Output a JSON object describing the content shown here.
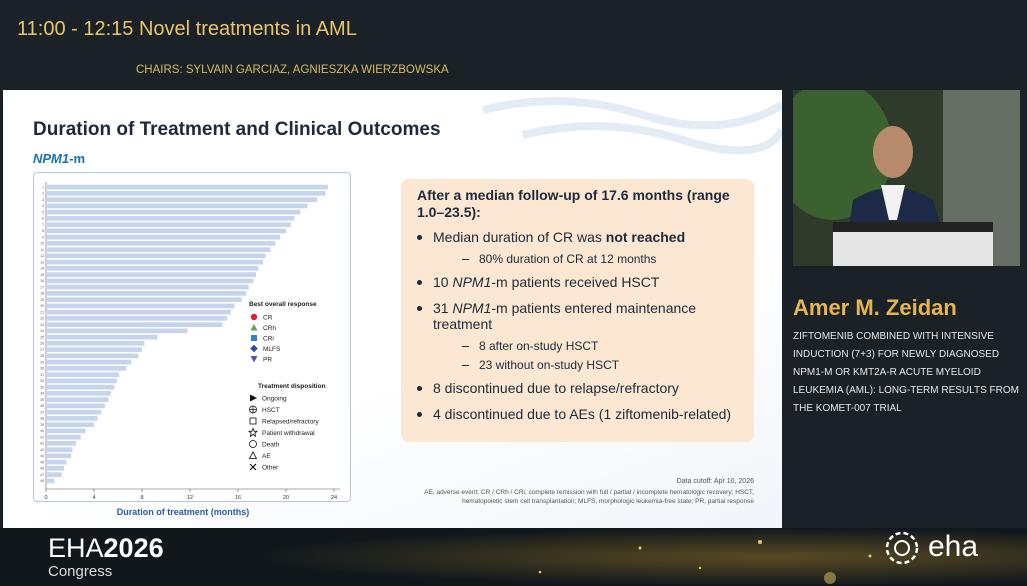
{
  "header": {
    "session": "11:00 - 12:15 Novel treatments in AML",
    "chairs": "CHAIRS: SYLVAIN GARCIAZ, AGNIESZKA WIERZBOWSKA"
  },
  "slide": {
    "title": "Duration of Treatment and Clinical Outcomes",
    "subtitle": [
      {
        "text": "NPM1",
        "italic": true
      },
      {
        "text": "-m"
      }
    ],
    "summary_heading": "After a median follow-up of 17.6 months (range 1.0–23.5):",
    "bullets": [
      {
        "level": 1,
        "runs": [
          {
            "text": "Median duration of CR was "
          },
          {
            "text": "not reached",
            "bold": true
          }
        ]
      },
      {
        "level": 2,
        "runs": [
          {
            "text": "80% duration of CR at 12 months"
          }
        ]
      },
      {
        "level": 1,
        "runs": [
          {
            "text": "10 "
          },
          {
            "text": "NPM1",
            "italic": true
          },
          {
            "text": "-m patients received HSCT"
          }
        ]
      },
      {
        "level": 1,
        "runs": [
          {
            "text": "31 "
          },
          {
            "text": "NPM1",
            "italic": true
          },
          {
            "text": "-m patients entered maintenance treatment"
          }
        ]
      },
      {
        "level": 2,
        "runs": [
          {
            "text": "8 after on-study HSCT"
          }
        ]
      },
      {
        "level": 2,
        "runs": [
          {
            "text": "23 without on-study HSCT"
          }
        ]
      },
      {
        "level": 1,
        "runs": [
          {
            "text": "8 discontinued due to relapse/refractory"
          }
        ]
      },
      {
        "level": 1,
        "runs": [
          {
            "text": "4 discontinued due to AEs (1 ziftomenib-related)"
          }
        ]
      }
    ],
    "cutoff": "Data cutoff: Apr 10, 2026",
    "footnote": "AE, adverse event; CR / CRh / CRi, complete remission with full / partial / incomplete hematologic recovery; HSCT, hematopoietic stem cell transplantation; MLFS, morphologic leukemia-free state; PR, partial response"
  },
  "chart_data": {
    "type": "bar",
    "orientation": "horizontal",
    "x_label": "Duration of treatment (months)",
    "categories": [
      "1",
      "2",
      "3",
      "4",
      "5",
      "6",
      "7",
      "8",
      "9",
      "10",
      "11",
      "12",
      "13",
      "14",
      "15",
      "16",
      "17",
      "18",
      "19",
      "20",
      "21",
      "22",
      "23",
      "24",
      "25",
      "26",
      "27",
      "28",
      "29",
      "30",
      "31",
      "32",
      "33",
      "34",
      "35",
      "36",
      "37",
      "38",
      "39",
      "40",
      "41",
      "42",
      "43",
      "44",
      "45",
      "46",
      "47",
      "48"
    ],
    "values": [
      23.5,
      23.3,
      22.6,
      21.8,
      21.2,
      20.7,
      20.4,
      20.0,
      19.5,
      19.1,
      18.7,
      18.3,
      18.1,
      17.7,
      17.5,
      17.3,
      16.9,
      16.7,
      16.3,
      15.7,
      15.4,
      15.1,
      14.7,
      11.8,
      9.3,
      8.2,
      8.0,
      7.7,
      7.1,
      6.7,
      6.1,
      5.9,
      5.7,
      5.4,
      5.2,
      4.9,
      4.6,
      4.3,
      4.0,
      3.3,
      2.9,
      2.5,
      2.2,
      2.1,
      1.7,
      1.5,
      1.3,
      0.7
    ],
    "color": "#c7d5ec",
    "xlim": [
      0,
      24.5
    ],
    "xticks": [
      0,
      4,
      8,
      12,
      16,
      20,
      24
    ],
    "legend_response": {
      "title": "Best overall response",
      "items": [
        {
          "name": "CR",
          "color": "#d9213b"
        },
        {
          "name": "CRh",
          "color": "#5aa84a"
        },
        {
          "name": "CRi",
          "color": "#2a86d0"
        },
        {
          "name": "MLFS",
          "color": "#2f4f9a"
        },
        {
          "name": "PR",
          "color": "#6a4fa0"
        }
      ]
    },
    "legend_disposition": {
      "title": "Treatment disposition",
      "items": [
        "Ongoing",
        "HSCT",
        "Relapsed/refractory",
        "Patient withdrawal",
        "Death",
        "AE",
        "Other"
      ]
    }
  },
  "speaker": {
    "name": "Amer M. Zeidan",
    "talk": "ZIFTOMENIB COMBINED WITH INTENSIVE INDUCTION (7+3) FOR NEWLY DIAGNOSED NPM1-M OR KMT2A-R ACUTE MYELOID LEUKEMIA (AML): LONG-TERM RESULTS FROM THE KOMET-007 TRIAL"
  },
  "footer": {
    "brand": "EHA",
    "year": "2026",
    "congress": "Congress",
    "logo": "eha"
  }
}
